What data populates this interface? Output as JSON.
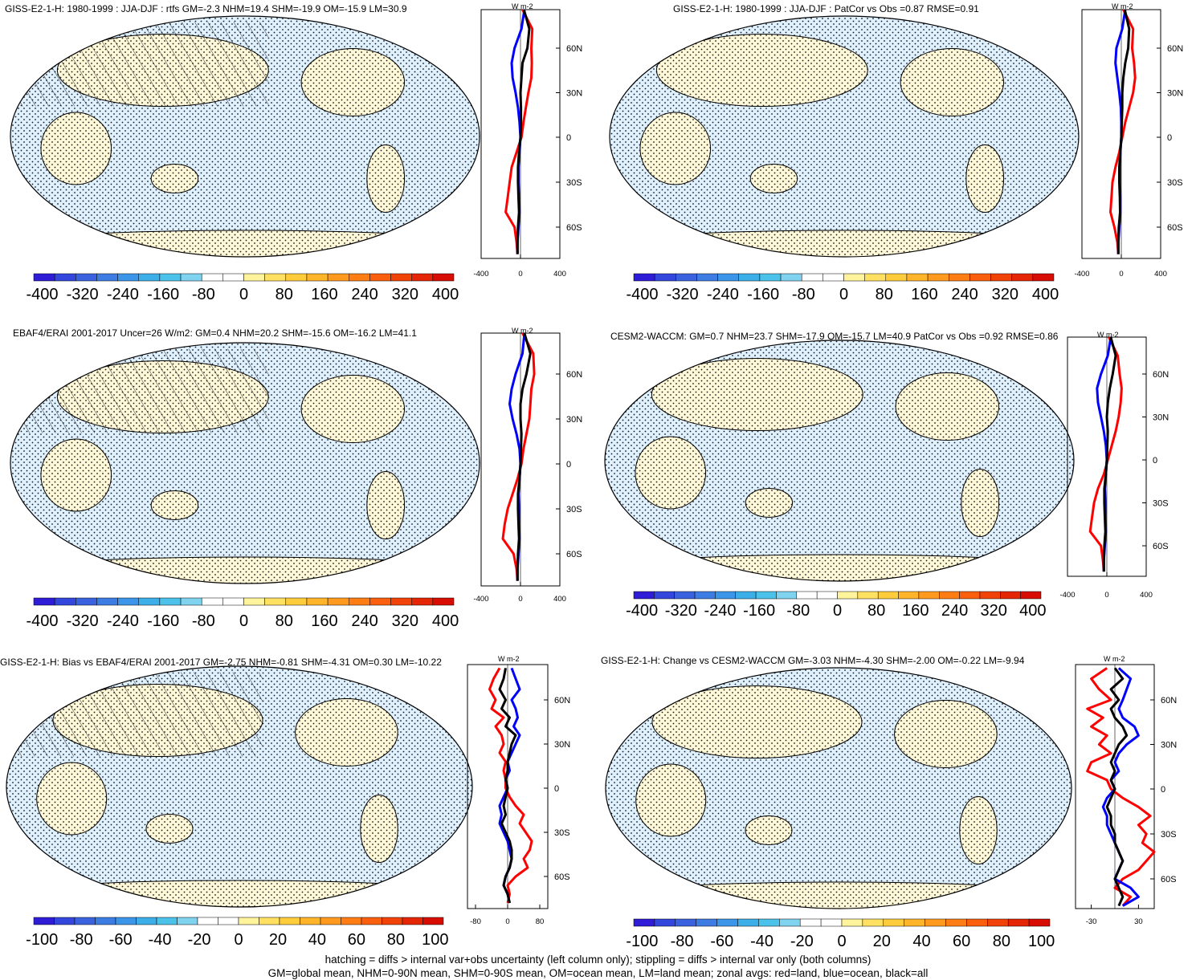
{
  "footnotes": [
    "hatching = diffs > internal var+obs uncertainty (left column only); stippling = diffs > internal var only (both columns)",
    "GM=global mean, NHM=0-90N mean, SHM=0-90S mean, OM=ocean mean, LM=land mean; zonal avgs: red=land, blue=ocean, black=all"
  ],
  "colors": {
    "land": "#ff0000",
    "ocean": "#0000ff",
    "all": "#000000",
    "land_fill": "#fff8d8",
    "ocean_fill": "#dff0ff"
  },
  "chart_data": [
    {
      "type": "heatmap",
      "id": "p1",
      "title": "GISS-E2-1-H: 1980-1999 : JJA-DJF : rtfs GM=-2.3 NHM=19.4 SHM=-19.9 OM=-15.9 LM=30.9",
      "colorbar_ticks": [
        "-400",
        "-320",
        "-240",
        "-160",
        "-80",
        "0",
        "80",
        "160",
        "240",
        "320",
        "400"
      ],
      "range": [
        -400,
        400
      ],
      "hatched": true,
      "profile": {
        "units": "W m-2",
        "xlim": [
          -400,
          400
        ],
        "xticks": [
          "-400",
          "0",
          "400"
        ],
        "yticks": [
          "60N",
          "30N",
          "0",
          "30S",
          "60S"
        ],
        "lat": [
          80,
          70,
          60,
          50,
          40,
          30,
          20,
          10,
          0,
          -10,
          -20,
          -30,
          -40,
          -50,
          -60,
          -70,
          -78
        ],
        "land": [
          20,
          120,
          110,
          115,
          110,
          80,
          55,
          30,
          10,
          -40,
          -90,
          -110,
          -130,
          -150,
          -60,
          -40,
          -30
        ],
        "ocean": [
          40,
          10,
          -60,
          -90,
          -80,
          -50,
          -25,
          -10,
          0,
          -10,
          -20,
          -20,
          -15,
          -10,
          -20,
          -30,
          -30
        ],
        "all": [
          35,
          90,
          70,
          20,
          10,
          0,
          5,
          5,
          0,
          -15,
          -25,
          -25,
          -20,
          -15,
          -25,
          -30,
          -30
        ]
      }
    },
    {
      "type": "heatmap",
      "id": "p2",
      "title": "GISS-E2-1-H: 1980-1999 : JJA-DJF : PatCor vs Obs =0.87 RMSE=0.91",
      "colorbar_ticks": [
        "-400",
        "-320",
        "-240",
        "-160",
        "-80",
        "0",
        "80",
        "160",
        "240",
        "320",
        "400"
      ],
      "range": [
        -400,
        400
      ],
      "hatched": false,
      "profile": {
        "units": "W m-2",
        "xlim": [
          -400,
          400
        ],
        "xticks": [
          "-400",
          "0",
          "400"
        ],
        "yticks": [
          "60N",
          "30N",
          "0",
          "30S",
          "60S"
        ],
        "lat": [
          80,
          70,
          60,
          50,
          40,
          30,
          20,
          10,
          0,
          -10,
          -20,
          -30,
          -40,
          -50,
          -60,
          -70,
          -78
        ],
        "land": [
          20,
          120,
          110,
          130,
          140,
          120,
          80,
          40,
          10,
          -20,
          -60,
          -90,
          -100,
          -110,
          -70,
          -40,
          -30
        ],
        "ocean": [
          40,
          10,
          -50,
          -60,
          -40,
          -20,
          -5,
          0,
          0,
          -10,
          -15,
          -15,
          -10,
          -10,
          -20,
          -30,
          -30
        ],
        "all": [
          35,
          80,
          70,
          40,
          20,
          10,
          10,
          5,
          0,
          -10,
          -20,
          -20,
          -15,
          -12,
          -25,
          -30,
          -30
        ]
      }
    },
    {
      "type": "heatmap",
      "id": "p3",
      "title": "EBAF4/ERAI 2001-2017 Uncer=26 W/m2: GM=0.4 NHM=20.2 SHM=-15.6 OM=-16.2 LM=41.1",
      "colorbar_ticks": [
        "-400",
        "-320",
        "-240",
        "-160",
        "-80",
        "0",
        "80",
        "160",
        "240",
        "320",
        "400"
      ],
      "range": [
        -400,
        400
      ],
      "hatched": true,
      "profile": {
        "units": "W m-2",
        "xlim": [
          -400,
          400
        ],
        "xticks": [
          "-400",
          "0",
          "400"
        ],
        "yticks": [
          "60N",
          "30N",
          "0",
          "30S",
          "60S"
        ],
        "lat": [
          80,
          70,
          60,
          50,
          40,
          30,
          20,
          10,
          0,
          -10,
          -20,
          -30,
          -40,
          -50,
          -60,
          -70,
          -78
        ],
        "land": [
          20,
          130,
          140,
          110,
          100,
          90,
          60,
          30,
          10,
          -30,
          -80,
          -130,
          -160,
          -180,
          -70,
          -40,
          -30
        ],
        "ocean": [
          40,
          20,
          -50,
          -90,
          -110,
          -80,
          -40,
          -10,
          0,
          -10,
          -20,
          -15,
          -15,
          -10,
          -20,
          -30,
          -30
        ],
        "all": [
          40,
          100,
          60,
          20,
          0,
          0,
          10,
          5,
          0,
          -10,
          -25,
          -25,
          -20,
          -15,
          -25,
          -30,
          -30
        ]
      }
    },
    {
      "type": "heatmap",
      "id": "p4",
      "title": "CESM2-WACCM: GM=0.7 NHM=23.7 SHM=-17.9 OM=-15.7 LM=40.9 PatCor vs Obs =0.92 RMSE=0.86",
      "colorbar_ticks": [
        "-400",
        "-320",
        "-240",
        "-160",
        "-80",
        "0",
        "80",
        "160",
        "240",
        "320",
        "400"
      ],
      "range": [
        -400,
        400
      ],
      "hatched": false,
      "profile": {
        "units": "W m-2",
        "xlim": [
          -400,
          400
        ],
        "xticks": [
          "-400",
          "0",
          "400"
        ],
        "yticks": [
          "60N",
          "30N",
          "0",
          "30S",
          "60S"
        ],
        "lat": [
          80,
          70,
          60,
          50,
          40,
          30,
          20,
          10,
          0,
          -10,
          -20,
          -30,
          -40,
          -50,
          -60,
          -70,
          -78
        ],
        "land": [
          20,
          110,
          130,
          150,
          140,
          120,
          90,
          50,
          10,
          -30,
          -90,
          -130,
          -150,
          -170,
          -60,
          -40,
          -30
        ],
        "ocean": [
          40,
          10,
          -60,
          -100,
          -90,
          -60,
          -30,
          -10,
          0,
          -10,
          -20,
          -15,
          -15,
          -10,
          -20,
          -30,
          -30
        ],
        "all": [
          40,
          90,
          60,
          30,
          10,
          0,
          10,
          5,
          0,
          -10,
          -25,
          -25,
          -20,
          -15,
          -25,
          -30,
          -30
        ]
      }
    },
    {
      "type": "heatmap",
      "id": "p5",
      "title": "GISS-E2-1-H: Bias vs EBAF4/ERAI 2001-2017 GM=-2.75 NHM=-0.81 SHM=-4.31 OM=0.30 LM=-10.22",
      "colorbar_ticks": [
        "-100",
        "-80",
        "-60",
        "-40",
        "-20",
        "0",
        "20",
        "40",
        "60",
        "80",
        "100"
      ],
      "range": [
        -100,
        100
      ],
      "hatched": true,
      "profile": {
        "units": "W m-2",
        "xlim": [
          -100,
          100
        ],
        "xticks": [
          "-80",
          "0",
          "80"
        ],
        "yticks": [
          "60N",
          "30N",
          "0",
          "30S",
          "60S"
        ],
        "lat": [
          78,
          72,
          66,
          60,
          54,
          48,
          42,
          36,
          30,
          24,
          18,
          12,
          6,
          0,
          -6,
          -12,
          -18,
          -24,
          -30,
          -36,
          -42,
          -48,
          -54,
          -60,
          -66,
          -72,
          -78
        ],
        "land": [
          -20,
          -35,
          -45,
          -30,
          -40,
          -10,
          -30,
          -15,
          -10,
          -20,
          -5,
          -10,
          -5,
          -5,
          5,
          20,
          40,
          30,
          45,
          60,
          55,
          40,
          50,
          20,
          0,
          5,
          0
        ],
        "ocean": [
          10,
          20,
          30,
          10,
          20,
          25,
          15,
          30,
          20,
          10,
          0,
          5,
          -5,
          0,
          -10,
          -20,
          -15,
          -20,
          -10,
          0,
          5,
          10,
          5,
          -5,
          -10,
          0,
          5
        ],
        "all": [
          -5,
          -10,
          -20,
          -5,
          -15,
          5,
          -5,
          20,
          10,
          5,
          0,
          0,
          -5,
          0,
          -5,
          -10,
          -5,
          -15,
          -5,
          5,
          10,
          10,
          5,
          -5,
          -10,
          0,
          5
        ]
      }
    },
    {
      "type": "heatmap",
      "id": "p6",
      "title": "GISS-E2-1-H: Change vs CESM2-WACCM GM=-3.03 NHM=-4.30 SHM=-2.00 OM=-0.22 LM=-9.94",
      "colorbar_ticks": [
        "-100",
        "-80",
        "-60",
        "-40",
        "-20",
        "0",
        "20",
        "40",
        "60",
        "80",
        "100"
      ],
      "range": [
        -100,
        100
      ],
      "hatched": false,
      "profile": {
        "units": "W m-2",
        "xlim": [
          -50,
          50
        ],
        "xticks": [
          "-30",
          "30"
        ],
        "yticks": [
          "60N",
          "30N",
          "0",
          "30S",
          "60S"
        ],
        "lat": [
          78,
          72,
          66,
          60,
          54,
          48,
          42,
          36,
          30,
          24,
          18,
          12,
          6,
          0,
          -6,
          -12,
          -18,
          -24,
          -30,
          -36,
          -42,
          -48,
          -54,
          -60,
          -66,
          -72,
          -78
        ],
        "land": [
          -10,
          -30,
          -20,
          -5,
          -35,
          -15,
          -30,
          -10,
          -20,
          -5,
          -30,
          -35,
          -10,
          -5,
          10,
          30,
          45,
          30,
          40,
          35,
          50,
          40,
          30,
          10,
          0,
          20,
          10
        ],
        "ocean": [
          5,
          20,
          15,
          10,
          5,
          10,
          25,
          30,
          15,
          5,
          0,
          5,
          -5,
          0,
          -10,
          -15,
          -10,
          -10,
          -5,
          0,
          5,
          10,
          5,
          0,
          20,
          30,
          10
        ],
        "all": [
          0,
          10,
          -5,
          5,
          -5,
          0,
          10,
          15,
          5,
          0,
          -5,
          0,
          -5,
          0,
          -5,
          -10,
          -5,
          -5,
          0,
          0,
          5,
          10,
          5,
          0,
          5,
          10,
          5
        ]
      }
    }
  ]
}
